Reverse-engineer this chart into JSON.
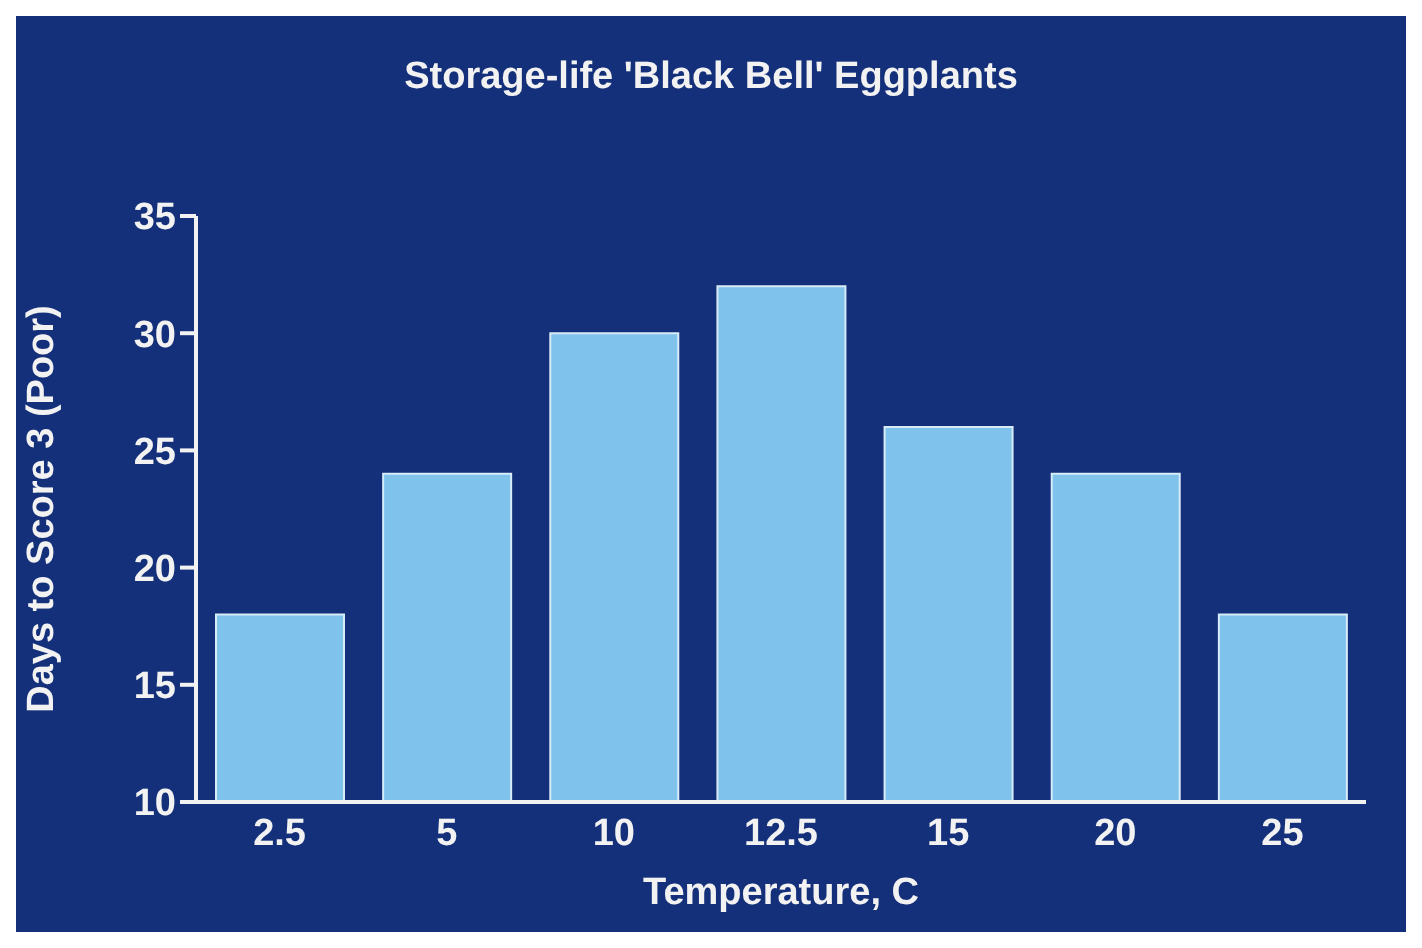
{
  "chart_data": {
    "type": "bar",
    "title": "Storage-life 'Black Bell' Eggplants",
    "xlabel": "Temperature, C",
    "ylabel": "Days to Score 3 (Poor)",
    "categories": [
      "2.5",
      "5",
      "10",
      "12.5",
      "15",
      "20",
      "25"
    ],
    "values": [
      18,
      24,
      30,
      32,
      26,
      24,
      18
    ],
    "color": "#7fc2ec",
    "ylim": [
      10,
      35
    ],
    "yticks": [
      10,
      15,
      20,
      25,
      30,
      35
    ]
  }
}
